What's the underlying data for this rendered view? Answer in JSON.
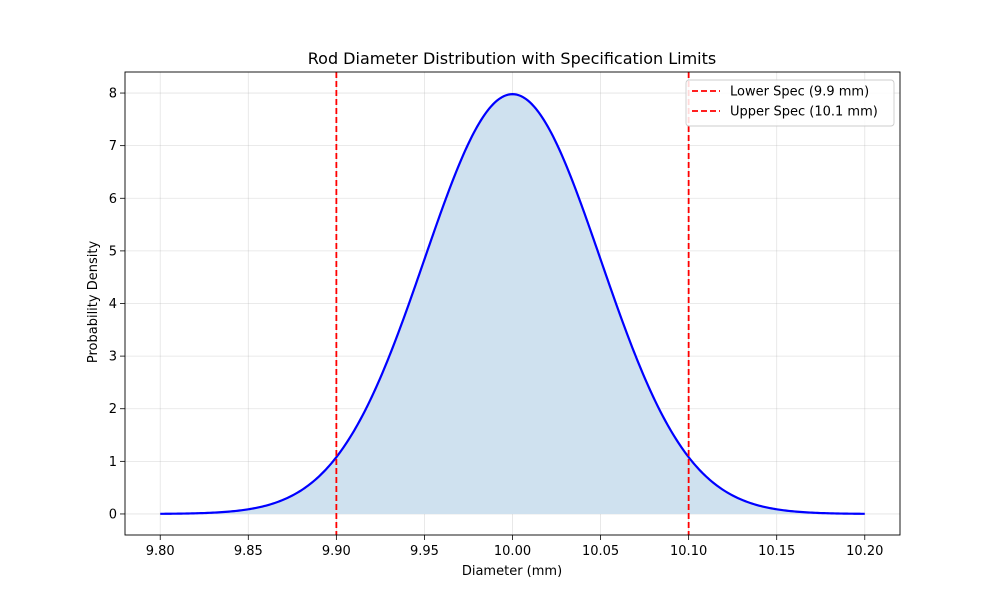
{
  "chart_data": {
    "type": "line",
    "title": "Rod Diameter Distribution with Specification Limits",
    "xlabel": "Diameter (mm)",
    "ylabel": "Probability Density",
    "xlim": [
      9.78,
      10.22
    ],
    "ylim": [
      -0.4,
      8.4
    ],
    "x_ticks": [
      "9.80",
      "9.85",
      "9.90",
      "9.95",
      "10.00",
      "10.05",
      "10.10",
      "10.15",
      "10.20"
    ],
    "y_ticks": [
      "0",
      "1",
      "2",
      "3",
      "4",
      "5",
      "6",
      "7",
      "8"
    ],
    "grid": true,
    "legend_position": "top-right",
    "distribution": {
      "kind": "normal",
      "mean": 10.0,
      "std": 0.05,
      "x_range": [
        9.8,
        10.2
      ],
      "peak_density": 7.98
    },
    "series": [
      {
        "color": "#0000ff",
        "fill_color": "#cfe1ef"
      }
    ],
    "reference_lines": [
      {
        "name": "Lower Spec (9.9 mm)",
        "x": 9.9,
        "color": "#ff0000",
        "style": "dashed"
      },
      {
        "name": "Upper Spec (10.1 mm)",
        "x": 10.1,
        "color": "#ff0000",
        "style": "dashed"
      }
    ]
  }
}
